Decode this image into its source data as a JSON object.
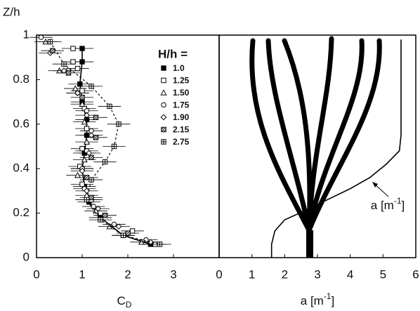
{
  "chart_data": [
    {
      "type": "scatter",
      "y_label": "Z/h",
      "x_label": [
        "C",
        "D"
      ],
      "xlim": [
        0,
        4
      ],
      "xticks": [
        0,
        1,
        2,
        3
      ],
      "ylim": [
        0,
        1
      ],
      "yticks": [
        0,
        0.2,
        0.4,
        0.6,
        0.8,
        1
      ],
      "legend_title": "H/h =",
      "series": [
        {
          "name": "1.0",
          "marker": "filled-square",
          "line_style": "solid",
          "color": "#000000",
          "xerr": 0.25,
          "x": [
            1.0,
            1.0,
            0.95,
            1.0,
            1.1,
            1.1,
            1.05,
            1.0,
            1.05,
            1.15,
            1.4,
            1.9,
            2.5
          ],
          "values": [
            0.94,
            0.88,
            0.78,
            0.7,
            0.62,
            0.55,
            0.47,
            0.4,
            0.32,
            0.25,
            0.18,
            0.1,
            0.06
          ]
        },
        {
          "name": "1.25",
          "marker": "square",
          "color": "#000000",
          "xerr": 0.25,
          "x": [
            0.8,
            0.8,
            0.9,
            1.0,
            1.05,
            1.1,
            1.0,
            0.95,
            1.0,
            1.2,
            1.5,
            2.1,
            2.6
          ],
          "values": [
            0.94,
            0.88,
            0.85,
            0.75,
            0.67,
            0.58,
            0.49,
            0.41,
            0.33,
            0.26,
            0.19,
            0.12,
            0.06
          ]
        },
        {
          "name": "1.50",
          "marker": "triangle",
          "color": "#000000",
          "xerr": 0.25,
          "x": [
            0.2,
            0.5,
            0.85,
            1.0,
            1.05,
            1.1,
            1.05,
            0.9,
            1.1,
            1.3,
            1.6,
            2.3
          ],
          "values": [
            0.97,
            0.84,
            0.76,
            0.69,
            0.61,
            0.52,
            0.44,
            0.37,
            0.28,
            0.21,
            0.14,
            0.07
          ]
        },
        {
          "name": "1.75",
          "marker": "circle",
          "color": "#000000",
          "xerr": 0.25,
          "x": [
            0.1,
            0.7,
            0.9,
            1.1,
            1.2,
            1.1,
            1.0,
            1.05,
            1.25,
            1.7,
            2.4
          ],
          "values": [
            0.99,
            0.84,
            0.74,
            0.66,
            0.57,
            0.48,
            0.4,
            0.31,
            0.23,
            0.15,
            0.08
          ]
        },
        {
          "name": "1.90",
          "marker": "diamond",
          "color": "#000000",
          "xerr": 0.25,
          "x": [
            0.3,
            0.6,
            0.9,
            1.1,
            1.2,
            1.15,
            1.0,
            1.1,
            1.35,
            1.8,
            2.5
          ],
          "values": [
            0.92,
            0.84,
            0.74,
            0.64,
            0.55,
            0.47,
            0.39,
            0.3,
            0.22,
            0.14,
            0.07
          ]
        },
        {
          "name": "2.15",
          "marker": "hatched-square",
          "color": "#000000",
          "xerr": 0.25,
          "x": [
            0.35,
            0.7,
            1.0,
            1.3,
            1.3,
            1.2,
            1.1,
            1.2,
            1.5,
            2.0
          ],
          "values": [
            0.93,
            0.83,
            0.72,
            0.63,
            0.54,
            0.45,
            0.36,
            0.27,
            0.19,
            0.11
          ]
        },
        {
          "name": "2.75",
          "marker": "cross-square",
          "line_style": "dashed",
          "color": "#000000",
          "xerr": 0.25,
          "x": [
            0.3,
            0.6,
            1.2,
            1.6,
            1.8,
            1.7,
            1.5,
            1.2,
            1.1,
            1.4,
            1.9,
            2.7
          ],
          "values": [
            0.97,
            0.87,
            0.77,
            0.68,
            0.6,
            0.5,
            0.43,
            0.35,
            0.26,
            0.17,
            0.1,
            0.06
          ]
        }
      ]
    },
    {
      "type": "line",
      "x_label": [
        "a [m",
        "-1",
        "]"
      ],
      "annotation": [
        "a [m",
        "-1",
        "]"
      ],
      "xlim": [
        0,
        6
      ],
      "xticks": [
        0,
        1,
        2,
        3,
        4,
        5,
        6
      ],
      "ylim": [
        0,
        1
      ],
      "series": [
        {
          "color": "#000000",
          "x": [
            1.6,
            1.6,
            1.7,
            2.0,
            2.6,
            3.3,
            4.0,
            4.6,
            5.1,
            5.5,
            5.55,
            5.55,
            5.55,
            5.55
          ],
          "values": [
            0,
            0.06,
            0.12,
            0.17,
            0.21,
            0.26,
            0.31,
            0.36,
            0.42,
            0.48,
            0.55,
            0.7,
            0.85,
            0.98
          ]
        }
      ]
    }
  ]
}
